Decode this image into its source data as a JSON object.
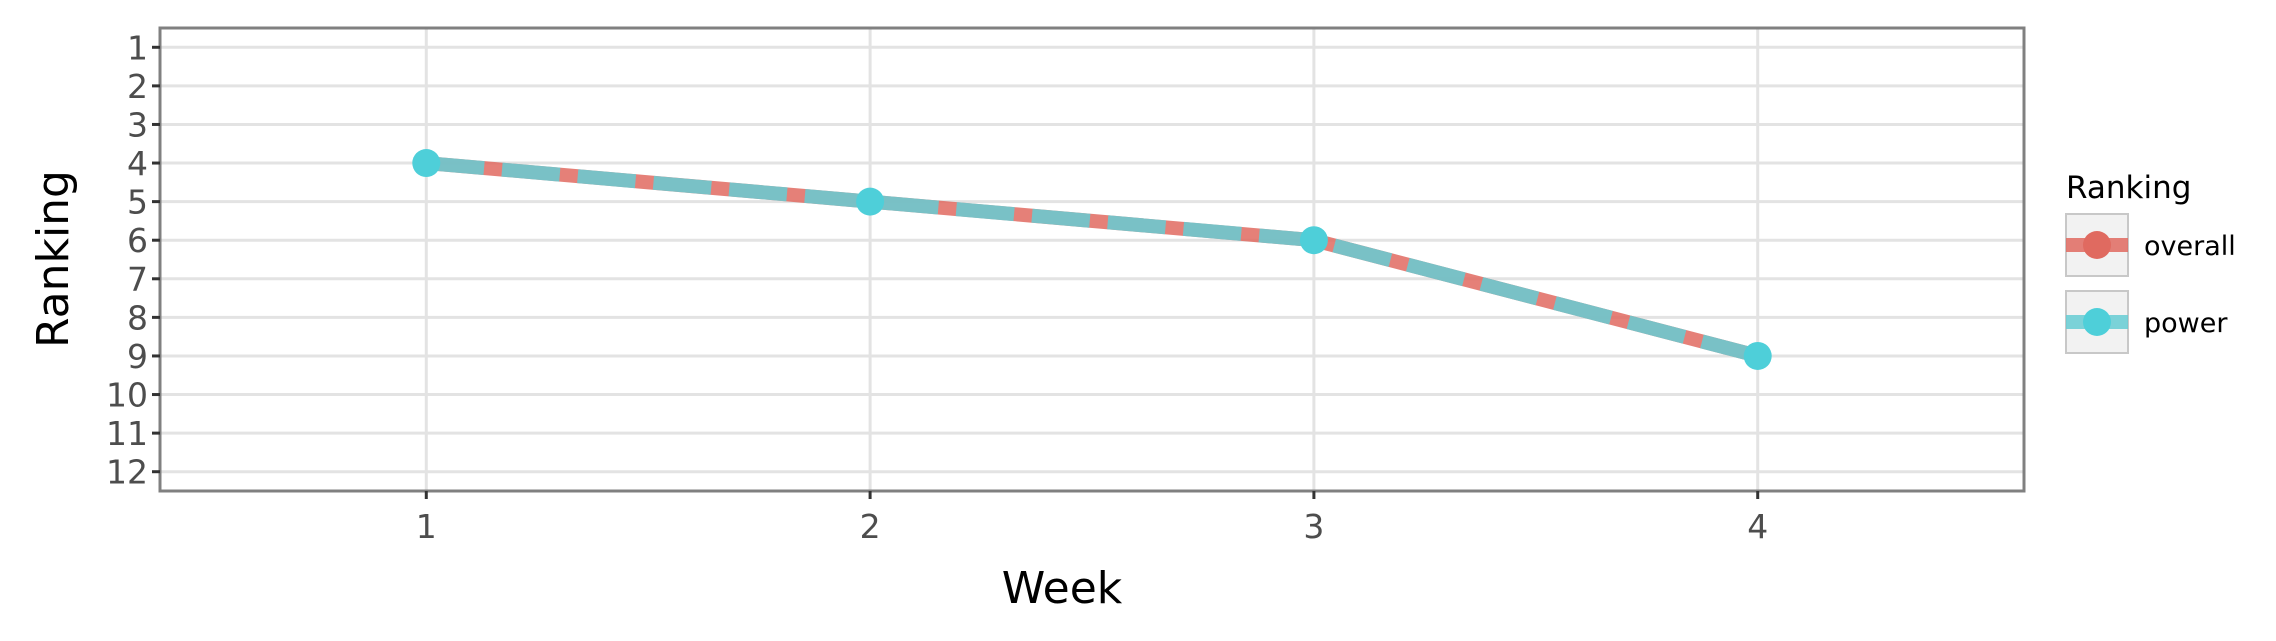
{
  "chart_data": {
    "type": "line",
    "title": "",
    "xlabel": "Week",
    "ylabel": "Ranking",
    "x": [
      1,
      2,
      3,
      4
    ],
    "xlim": [
      0.4,
      4.6
    ],
    "ylim": [
      12.5,
      0.5
    ],
    "y_reversed": true,
    "x_ticks": [
      1,
      2,
      3,
      4
    ],
    "y_ticks": [
      1,
      2,
      3,
      4,
      5,
      6,
      7,
      8,
      9,
      10,
      11,
      12
    ],
    "grid": true,
    "legend_title": "Ranking",
    "legend_position": "right",
    "series": [
      {
        "name": "overall",
        "values": [
          4,
          5,
          6,
          9
        ],
        "color": "#E06A60",
        "style": "solid"
      },
      {
        "name": "power",
        "values": [
          4,
          5,
          6,
          9
        ],
        "color": "#66CCD4",
        "style": "dashed",
        "point_color": "#4ECFD9"
      }
    ],
    "colors": {
      "panel_border": "#808080",
      "grid": "#e3e3e3",
      "legend_key_bg": "#f2f2f2",
      "legend_key_border": "#c8c8c8"
    }
  }
}
